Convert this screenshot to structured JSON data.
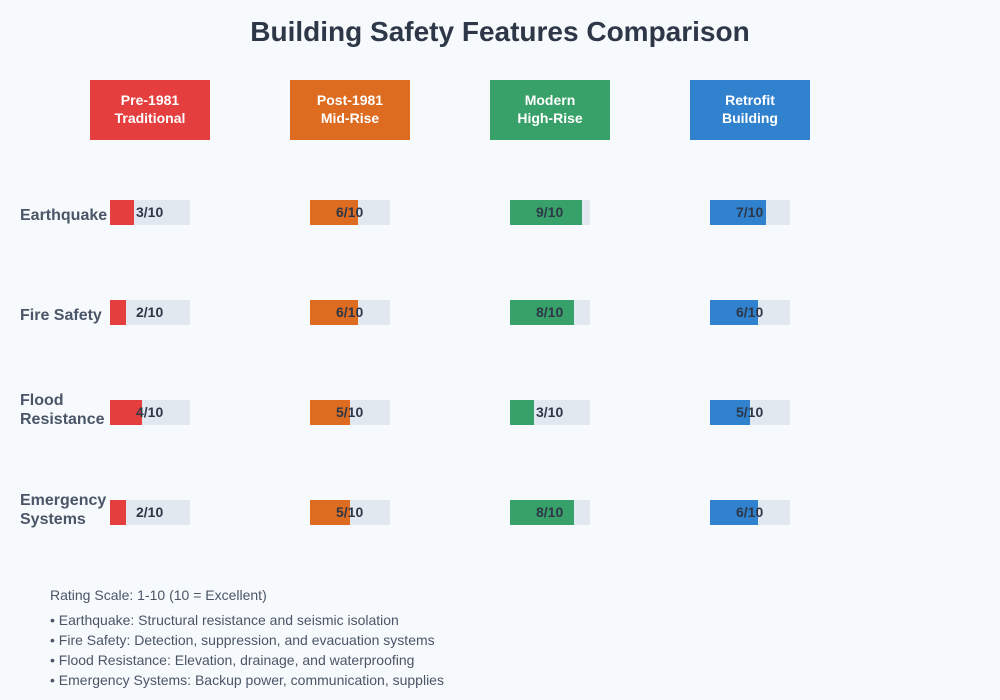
{
  "title": "Building Safety Features Comparison",
  "max_rating": 10,
  "colors": {
    "background": "#f7fafc",
    "track": "#e2e8f0",
    "title": "#2d3748",
    "row_label": "#4a5568",
    "value_text": "#2d3748"
  },
  "columns": [
    {
      "line1": "Pre-1981",
      "line2": "Traditional",
      "color": "#e53e3e"
    },
    {
      "line1": "Post-1981",
      "line2": "Mid-Rise",
      "color": "#dd6b20"
    },
    {
      "line1": "Modern",
      "line2": "High-Rise",
      "color": "#38a169"
    },
    {
      "line1": "Retrofit",
      "line2": "Building",
      "color": "#3182ce"
    }
  ],
  "rows": [
    {
      "label": "Earthquake",
      "values": [
        3,
        6,
        9,
        7
      ],
      "value_labels": [
        "3/10",
        "6/10",
        "9/10",
        "7/10"
      ]
    },
    {
      "label": "Fire Safety",
      "values": [
        2,
        6,
        8,
        6
      ],
      "value_labels": [
        "2/10",
        "6/10",
        "8/10",
        "6/10"
      ]
    },
    {
      "label": "Flood Resistance",
      "values": [
        4,
        5,
        3,
        5
      ],
      "value_labels": [
        "4/10",
        "5/10",
        "3/10",
        "5/10"
      ]
    },
    {
      "label": "Emergency Systems",
      "values": [
        2,
        5,
        8,
        6
      ],
      "value_labels": [
        "2/10",
        "5/10",
        "8/10",
        "6/10"
      ]
    }
  ],
  "legend": {
    "scale": "Rating Scale: 1-10 (10 = Excellent)",
    "notes": [
      "• Earthquake: Structural resistance and seismic isolation",
      "• Fire Safety: Detection, suppression, and evacuation systems",
      "• Flood Resistance: Elevation, drainage, and waterproofing",
      "• Emergency Systems: Backup power, communication, supplies"
    ]
  }
}
